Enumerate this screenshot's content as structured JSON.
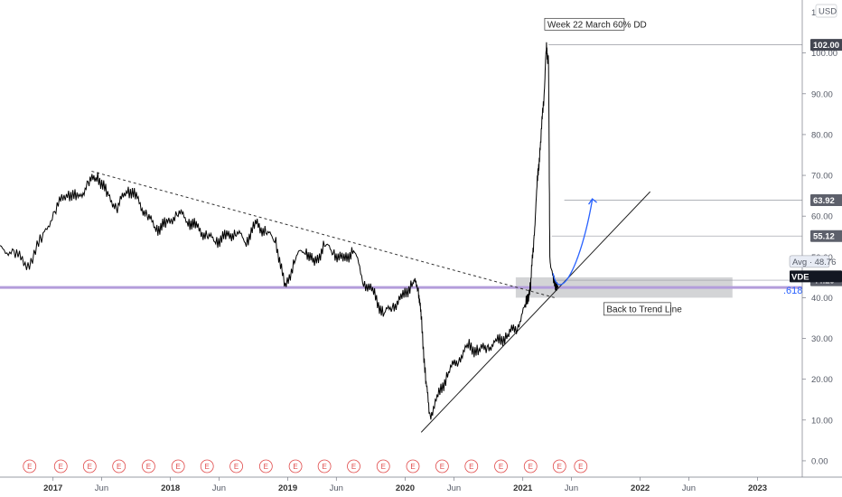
{
  "chart_data": {
    "type": "line",
    "title": "",
    "currency": "USD",
    "y_axis_top_label": "1",
    "yticks": [
      "100.00",
      "90.00",
      "80.00",
      "70.00",
      "60.00",
      "50.00",
      "40.00",
      "30.00",
      "20.00",
      "10.00",
      "0.00"
    ],
    "ylim": [
      -4,
      113
    ],
    "xticks": [
      {
        "label": "2017",
        "date": "2017-01-01",
        "major": true
      },
      {
        "label": "Jun",
        "date": "2017-06-01",
        "major": false
      },
      {
        "label": "2018",
        "date": "2018-01-01",
        "major": true
      },
      {
        "label": "Jun",
        "date": "2018-06-01",
        "major": false
      },
      {
        "label": "2019",
        "date": "2019-01-01",
        "major": true
      },
      {
        "label": "Jun",
        "date": "2019-06-01",
        "major": false
      },
      {
        "label": "2020",
        "date": "2020-01-01",
        "major": true
      },
      {
        "label": "Jun",
        "date": "2020-06-01",
        "major": false
      },
      {
        "label": "2021",
        "date": "2021-01-01",
        "major": true
      },
      {
        "label": "Jun",
        "date": "2021-06-01",
        "major": false
      },
      {
        "label": "2022",
        "date": "2022-01-01",
        "major": true
      },
      {
        "label": "Jun",
        "date": "2022-06-01",
        "major": false
      },
      {
        "label": "2023",
        "date": "2023-01-01",
        "major": true
      }
    ],
    "xlim": [
      "2016-07-20",
      "2023-05-20"
    ],
    "series": [
      {
        "x": [
          "2016-07-20",
          "2016-09-01",
          "2016-10-15",
          "2016-12-01",
          "2017-01-10",
          "2017-02-15",
          "2017-03-20",
          "2017-04-20",
          "2017-05-20",
          "2017-06-20",
          "2017-07-20",
          "2017-08-20",
          "2017-09-20",
          "2017-10-20",
          "2017-11-20",
          "2017-12-20",
          "2018-01-25",
          "2018-02-25",
          "2018-03-25",
          "2018-04-25",
          "2018-05-25",
          "2018-06-25",
          "2018-07-25",
          "2018-08-25",
          "2018-09-25",
          "2018-10-25",
          "2018-11-25",
          "2018-12-24",
          "2019-01-25",
          "2019-02-25",
          "2019-03-25",
          "2019-04-25",
          "2019-05-25",
          "2019-06-25",
          "2019-07-25",
          "2019-08-25",
          "2019-09-25",
          "2019-10-25",
          "2019-11-25",
          "2019-12-25",
          "2020-01-25",
          "2020-02-10",
          "2020-02-20",
          "2020-03-05",
          "2020-03-18",
          "2020-04-15",
          "2020-05-15",
          "2020-06-15",
          "2020-07-15",
          "2020-08-15",
          "2020-09-15",
          "2020-10-15",
          "2020-11-15",
          "2020-12-15",
          "2021-01-10",
          "2021-01-25",
          "2021-02-05",
          "2021-02-15",
          "2021-02-25",
          "2021-03-08",
          "2021-03-15",
          "2021-03-22",
          "2021-03-26",
          "2021-04-05",
          "2021-04-20"
        ],
        "values": [
          52,
          51,
          48,
          55,
          62,
          66,
          64,
          68,
          70,
          65,
          62,
          67,
          64,
          60,
          57,
          58,
          61,
          59,
          57,
          55,
          54,
          55,
          56,
          54,
          58,
          56,
          54,
          42,
          50,
          52,
          48,
          53,
          51,
          49,
          52,
          44,
          41,
          36,
          38,
          40,
          44,
          43,
          35,
          20,
          11,
          16,
          22,
          25,
          28,
          27,
          28,
          29,
          31,
          33,
          38,
          43,
          55,
          68,
          78,
          90,
          101,
          98,
          50,
          44,
          43
        ]
      }
    ],
    "annotations": {
      "peak_label": "Week 22 March 60% DD",
      "trend_label": "Back to Trend Line",
      "fib_label": ".618"
    },
    "price_tags": [
      {
        "label": "102.00",
        "value": 102.0,
        "color": "#434651"
      },
      {
        "label": "63.92",
        "value": 63.92,
        "color": "#5d606b"
      },
      {
        "label": "55.12",
        "value": 55.12,
        "color": "#5d606b"
      },
      {
        "label": "Avg · 48.76",
        "value": 48.76,
        "color": "#e8ecf5"
      },
      {
        "label": "44.29",
        "value": 44.29,
        "color": "#5d606b"
      },
      {
        "label": "VDE",
        "value": 46.0,
        "color": "#131722"
      }
    ],
    "earnings_marker": "E",
    "earnings_dates": [
      "2016-10-20",
      "2017-01-25",
      "2017-04-25",
      "2017-07-25",
      "2017-10-25",
      "2018-01-25",
      "2018-04-25",
      "2018-07-25",
      "2018-10-25",
      "2019-01-25",
      "2019-04-25",
      "2019-07-25",
      "2019-10-25",
      "2020-01-25",
      "2020-04-25",
      "2020-07-25",
      "2020-10-25",
      "2021-01-25",
      "2021-04-25",
      "2021-06-30"
    ],
    "colors": {
      "price": "#000000",
      "fib_line": "#b39ddb",
      "fib_label": "#2962ff",
      "zone": "#c8c9cc",
      "projection": "#2962ff",
      "earnings": "#e04b4b"
    }
  }
}
